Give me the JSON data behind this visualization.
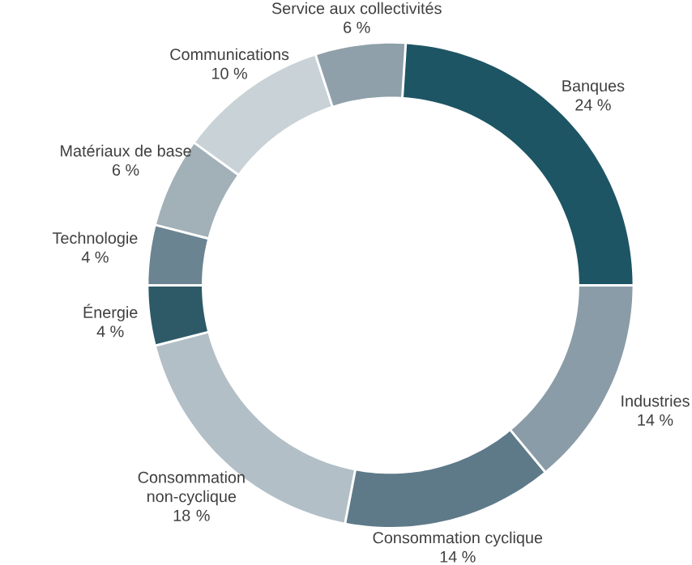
{
  "chart_data": {
    "type": "donut",
    "categories": [
      "Banques",
      "Industries",
      "Consommation cyclique",
      "Consommation non-cyclique",
      "Énergie",
      "Technologie",
      "Matériaux de base",
      "Communications",
      "Service aux collectivités"
    ],
    "values": [
      24,
      14,
      14,
      18,
      4,
      4,
      6,
      10,
      6
    ],
    "value_labels": [
      "24 %",
      "14 %",
      "14 %",
      "18 %",
      "4 %",
      "4 %",
      "6 %",
      "10 %",
      "6 %"
    ],
    "colors": [
      "#1d5564",
      "#8a9ca7",
      "#5e7a89",
      "#b3bfc6",
      "#2e5a68",
      "#6b8492",
      "#a2b0b8",
      "#c8d2d7",
      "#8fa0aa"
    ]
  }
}
